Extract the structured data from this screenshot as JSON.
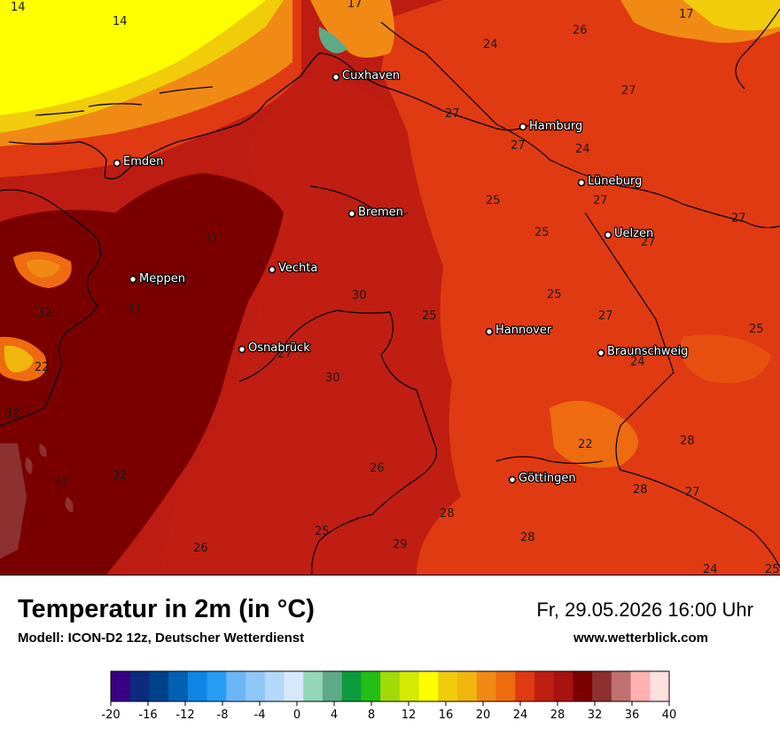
{
  "header": {
    "title": "Temperatur in 2m (in °C)",
    "subtitle": "Modell: ICON-D2 12z, Deutscher Wetterdienst",
    "datetime": "Fr, 29.05.2026 16:00 Uhr",
    "website": "www.wetterblick.com"
  },
  "map": {
    "cities": [
      "Cuxhaven",
      "Hamburg",
      "Emden",
      "Lüneburg",
      "Bremen",
      "Uelzen",
      "Vechta",
      "Meppen",
      "Osnabrück",
      "Hannover",
      "Braunschweig",
      "Göttingen"
    ],
    "temperature_labels": [
      "14",
      "14",
      "17",
      "17",
      "24",
      "26",
      "27",
      "27",
      "27",
      "24",
      "27",
      "25",
      "27",
      "25",
      "27",
      "31",
      "30",
      "25",
      "25",
      "32",
      "32",
      "27",
      "22",
      "27",
      "25",
      "24",
      "30",
      "32",
      "22",
      "32",
      "28",
      "26",
      "32",
      "28",
      "27",
      "28",
      "25",
      "29",
      "28",
      "26",
      "24",
      "25"
    ]
  },
  "legend": {
    "colors": [
      "#3a0084",
      "#0d2a7e",
      "#00428a",
      "#0061b5",
      "#0d86e6",
      "#289cf5",
      "#6bb6f7",
      "#8ec7f8",
      "#b3d8fa",
      "#d6e9fc",
      "#93d6b8",
      "#5eaa88",
      "#0c9b3c",
      "#22bf17",
      "#a2d908",
      "#d2ea04",
      "#ffff00",
      "#f0cc0a",
      "#f0b60e",
      "#f08a14",
      "#ee6b10",
      "#e03a12",
      "#c01e12",
      "#a81210",
      "#7a0000",
      "#8c3030",
      "#c07070",
      "#ffb0b0",
      "#ffe0e0"
    ],
    "tick_labels": [
      "-20",
      "-16",
      "-12",
      "-8",
      "-4",
      "0",
      "4",
      "8",
      "12",
      "16",
      "20",
      "24",
      "28",
      "32",
      "36",
      "40"
    ]
  }
}
